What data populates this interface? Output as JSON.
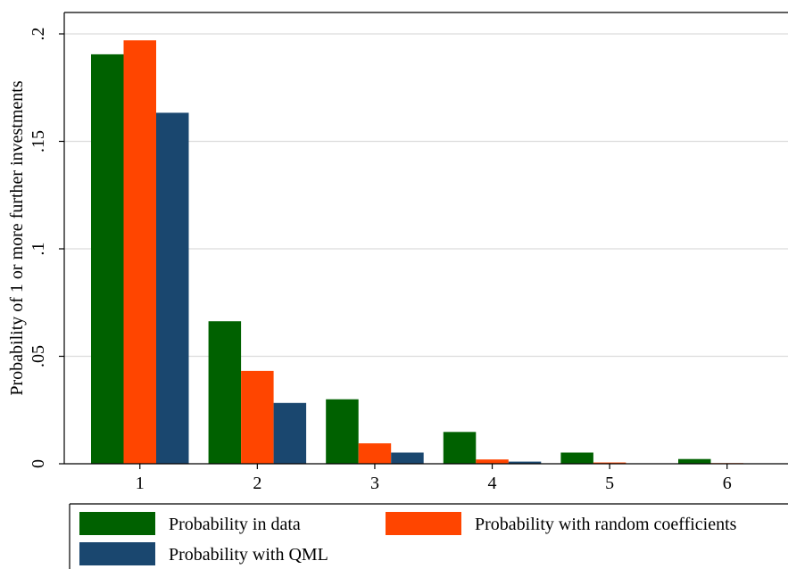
{
  "chart_data": {
    "type": "bar",
    "categories": [
      "1",
      "2",
      "3",
      "4",
      "5",
      "6"
    ],
    "series": [
      {
        "name": "Probability in data",
        "color": "#006100",
        "values": [
          0.1905,
          0.0663,
          0.03,
          0.0148,
          0.0052,
          0.0022
        ]
      },
      {
        "name": "Probability with random coefficients",
        "color": "#ff4500",
        "values": [
          0.197,
          0.0432,
          0.0095,
          0.002,
          0.0006,
          0.0003
        ]
      },
      {
        "name": "Probability with QML",
        "color": "#1a476f",
        "values": [
          0.1633,
          0.0283,
          0.0052,
          0.001,
          0.0001,
          0.0
        ]
      }
    ],
    "title": "",
    "xlabel": "",
    "ylabel": "Probability of 1 or more further investments",
    "ylim": [
      0,
      0.2
    ],
    "yticks": [
      0,
      0.05,
      0.1,
      0.15,
      0.2
    ],
    "ytick_labels": [
      "0",
      ".05",
      ".1",
      ".15",
      ".2"
    ],
    "grid": true,
    "legend_position": "bottom"
  }
}
